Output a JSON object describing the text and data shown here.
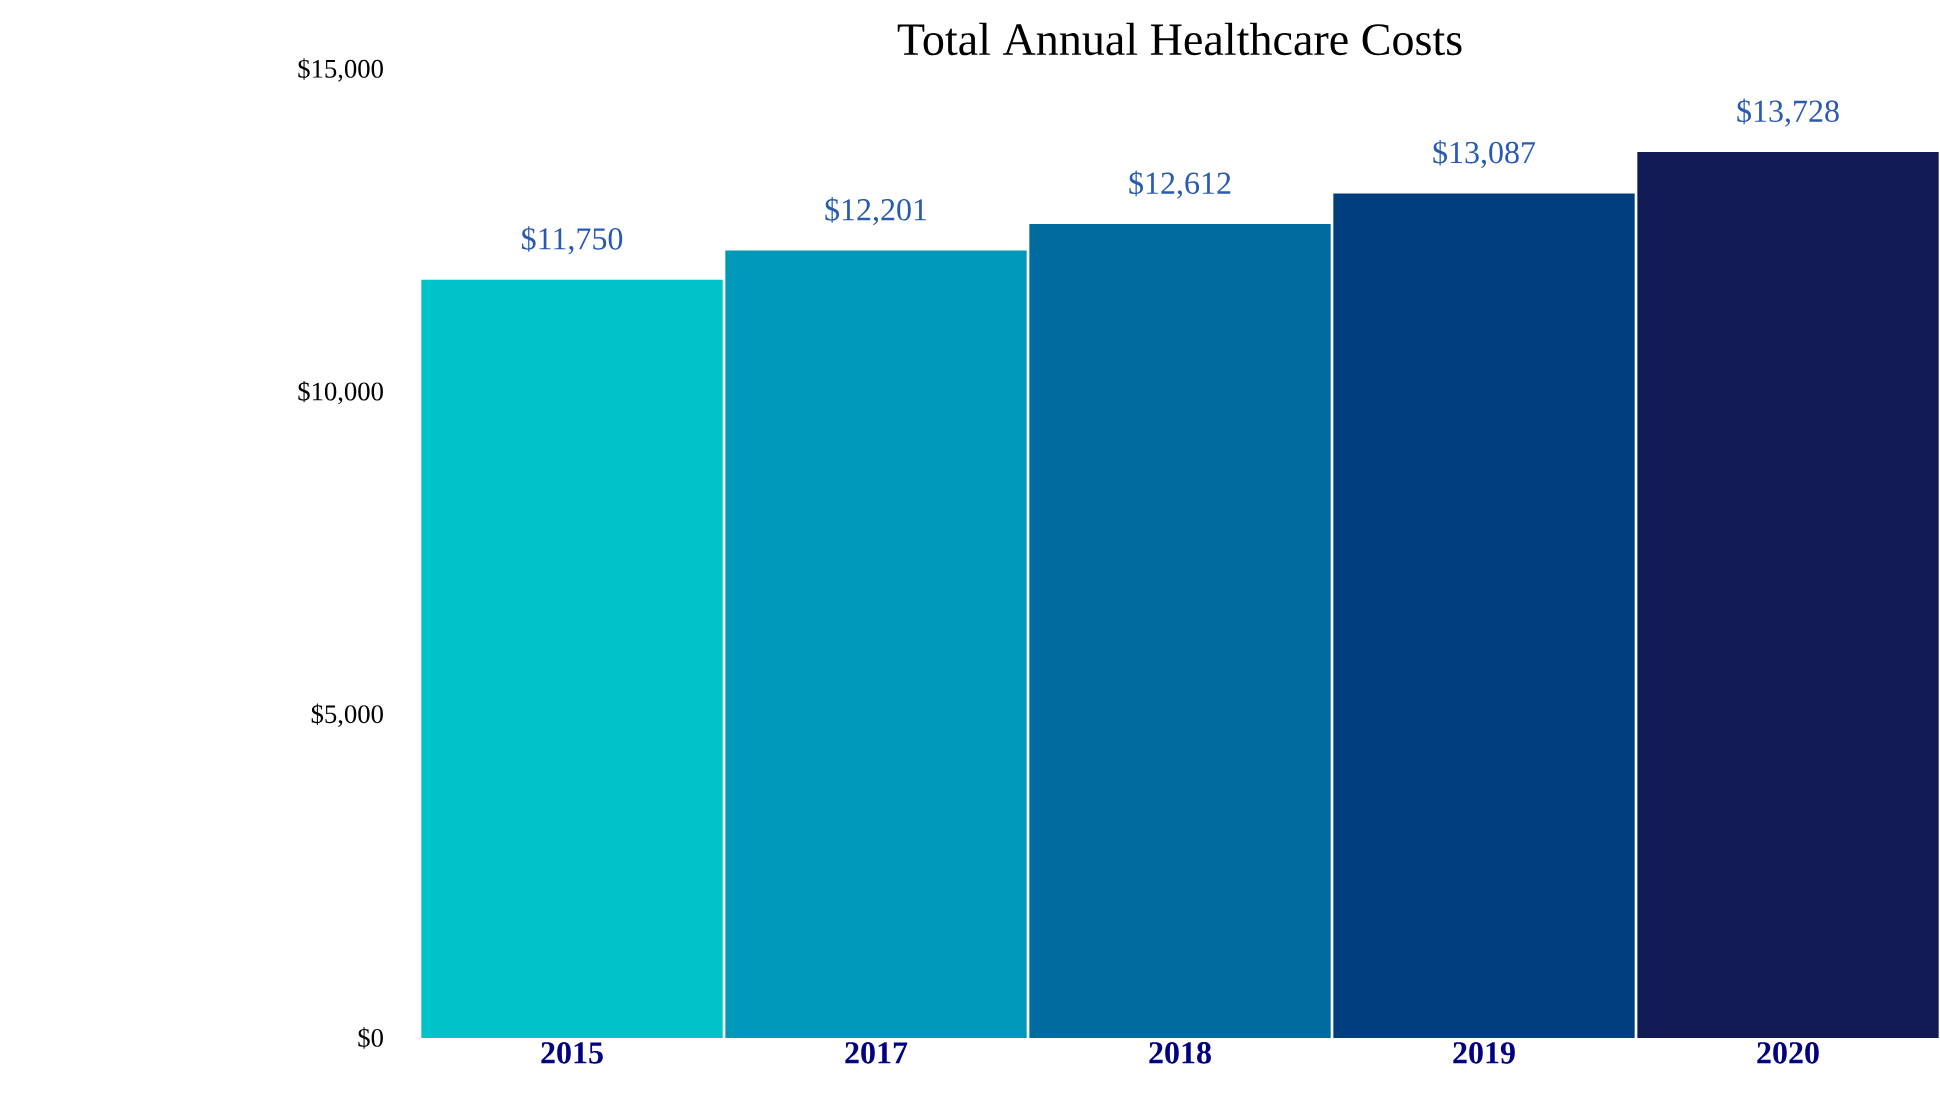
{
  "chart_data": {
    "type": "bar",
    "title": "Total Annual Healthcare Costs",
    "categories": [
      "2015",
      "2017",
      "2018",
      "2019",
      "2020"
    ],
    "values": [
      11750,
      12201,
      12612,
      13087,
      13728
    ],
    "value_labels": [
      "$11,750",
      "$12,201",
      "$12,612",
      "$13,087",
      "$13,728"
    ],
    "colors": [
      "#00c2c9",
      "#0098b9",
      "#006b9f",
      "#003e7e",
      "#121a55"
    ],
    "ylim": [
      0,
      15000
    ],
    "yticks": [
      {
        "value": 0,
        "label": "$0"
      },
      {
        "value": 5000,
        "label": "$5,000"
      },
      {
        "value": 10000,
        "label": "$10,000"
      },
      {
        "value": 15000,
        "label": "$15,000"
      }
    ],
    "grid": false
  }
}
